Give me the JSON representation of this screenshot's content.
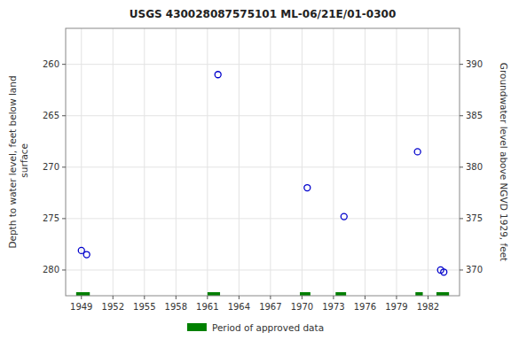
{
  "chart_data": {
    "type": "scatter",
    "title": "USGS 430028087575101 ML-06/21E/01-0300",
    "x": [
      1949,
      1949.5,
      1962,
      1970.5,
      1974,
      1981,
      1983.2,
      1983.5
    ],
    "values": [
      278.1,
      278.5,
      261.0,
      272.0,
      274.8,
      268.5,
      280.0,
      280.2
    ],
    "color": "#0000cc",
    "marker": "circle",
    "xlim": [
      1947.5,
      1985.0
    ],
    "xticks": [
      1949,
      1952,
      1955,
      1958,
      1961,
      1964,
      1967,
      1970,
      1973,
      1976,
      1979,
      1982
    ],
    "ylim": [
      282.5,
      256.5
    ],
    "yticks": [
      260,
      265,
      270,
      275,
      280
    ],
    "ylabel": "Depth to water level, feet below land\n surface",
    "y2lim": [
      367.5,
      393.5
    ],
    "y2ticks": [
      370,
      375,
      380,
      385,
      390
    ],
    "y2label": "Groundwater level above NGVD 1929, feet",
    "grid": true,
    "legend": "bottom",
    "spans": {
      "name": "Period of approved data",
      "color": "#008000",
      "ranges": [
        [
          1948.5,
          1949.8
        ],
        [
          1961.0,
          1962.2
        ],
        [
          1969.8,
          1970.8
        ],
        [
          1973.2,
          1974.2
        ],
        [
          1980.8,
          1981.5
        ],
        [
          1982.8,
          1984.0
        ]
      ]
    }
  }
}
